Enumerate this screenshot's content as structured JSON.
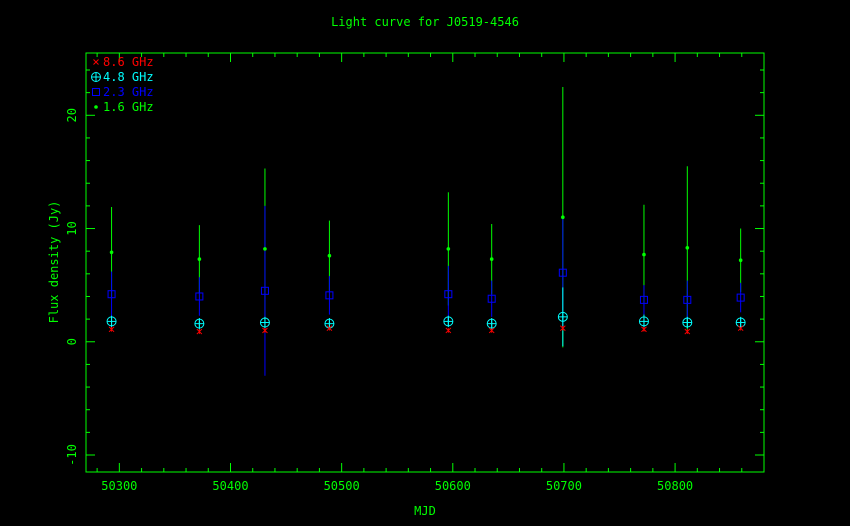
{
  "chart_data": {
    "type": "scatter",
    "title": "Light curve for J0519-4546",
    "xlabel": "MJD",
    "ylabel": "Flux density (Jy)",
    "xlim": [
      50270,
      50880
    ],
    "ylim": [
      -11.5,
      25.5
    ],
    "x_ticks": [
      50300,
      50400,
      50500,
      50600,
      50700,
      50800
    ],
    "y_ticks": [
      -10,
      0,
      10,
      20
    ],
    "grid": false,
    "legend_position": "top-left",
    "colors": {
      "axes": "#00ff00",
      "text": "#00ff00"
    },
    "series": [
      {
        "name": "8.6 GHz",
        "marker": "x",
        "color": "#ff0000",
        "x": [
          50293,
          50372,
          50431,
          50489,
          50596,
          50635,
          50699,
          50772,
          50811,
          50859
        ],
        "y": [
          1.1,
          0.9,
          1.0,
          1.2,
          1.0,
          1.0,
          1.2,
          1.1,
          0.9,
          1.2
        ],
        "err": [
          0.2,
          0.2,
          0.2,
          0.2,
          0.2,
          0.2,
          0.2,
          0.2,
          0.2,
          0.2
        ]
      },
      {
        "name": "4.8 GHz",
        "marker": "circle-plus",
        "color": "#00ffff",
        "x": [
          50293,
          50372,
          50431,
          50489,
          50596,
          50635,
          50699,
          50772,
          50811,
          50859
        ],
        "y": [
          1.8,
          1.6,
          1.7,
          1.6,
          1.8,
          1.6,
          2.2,
          1.8,
          1.7,
          1.7
        ],
        "err": [
          0.5,
          0.5,
          0.5,
          0.5,
          0.5,
          0.5,
          2.6,
          0.6,
          0.5,
          0.5
        ]
      },
      {
        "name": "2.3 GHz",
        "marker": "square",
        "color": "#0000ff",
        "x": [
          50293,
          50372,
          50431,
          50489,
          50596,
          50635,
          50699,
          50772,
          50811,
          50859
        ],
        "y": [
          4.2,
          4.0,
          4.5,
          4.1,
          4.2,
          3.8,
          6.1,
          3.7,
          3.7,
          3.9
        ],
        "err": [
          2.0,
          1.7,
          7.5,
          1.7,
          2.5,
          1.6,
          4.9,
          1.3,
          1.7,
          1.3
        ]
      },
      {
        "name": "1.6 GHz",
        "marker": "dot",
        "color": "#00ff00",
        "x": [
          50293,
          50372,
          50431,
          50489,
          50596,
          50635,
          50699,
          50772,
          50811,
          50859
        ],
        "y": [
          7.9,
          7.3,
          8.2,
          7.6,
          8.2,
          7.3,
          11.0,
          7.7,
          8.3,
          7.2
        ],
        "err": [
          4.0,
          3.0,
          7.1,
          3.1,
          5.0,
          3.1,
          11.5,
          4.4,
          7.2,
          2.8
        ]
      }
    ]
  }
}
